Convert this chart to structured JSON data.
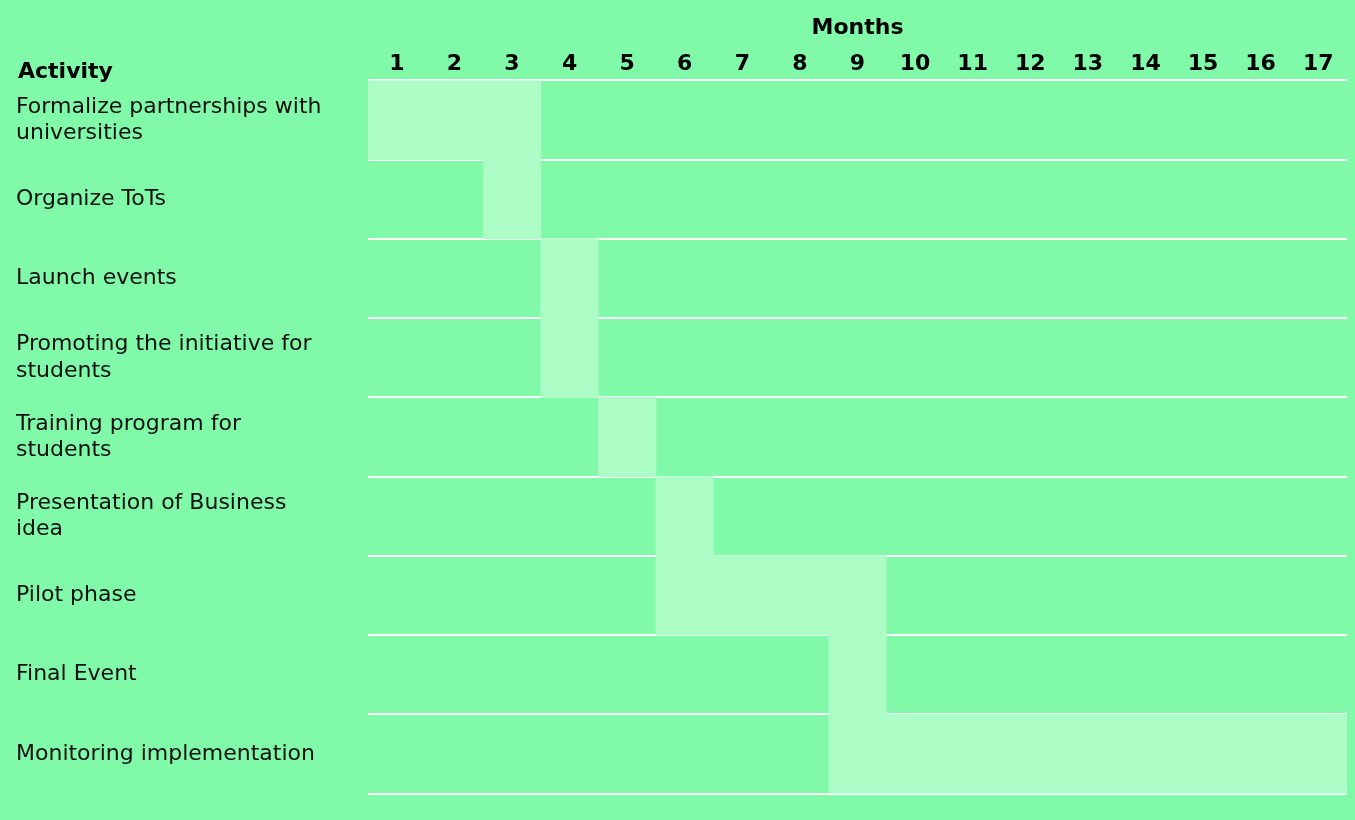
{
  "chart_data": {
    "type": "bar",
    "orientation": "horizontal",
    "title": "Months",
    "ylabel": "Activity",
    "categories": [
      "Formalize partnerships with universities",
      "Organize ToTs",
      "Launch events",
      "Promoting the initiative for students",
      "Training program for students",
      "Presentation of Business idea",
      "Pilot phase",
      "Final Event",
      "Monitoring implementation"
    ],
    "base": [
      0.5,
      2.5,
      3.5,
      3.5,
      4.5,
      5.5,
      5.5,
      8.5,
      8.5
    ],
    "values": [
      3,
      1,
      1,
      1,
      1,
      1,
      4,
      1,
      9
    ],
    "color": "#acfdc6",
    "xlim": [
      0.5,
      17.5
    ],
    "xticks": [
      1,
      2,
      3,
      4,
      5,
      6,
      7,
      8,
      9,
      10,
      11,
      12,
      13,
      14,
      15,
      16,
      17
    ],
    "grid": "y",
    "legend": false
  }
}
